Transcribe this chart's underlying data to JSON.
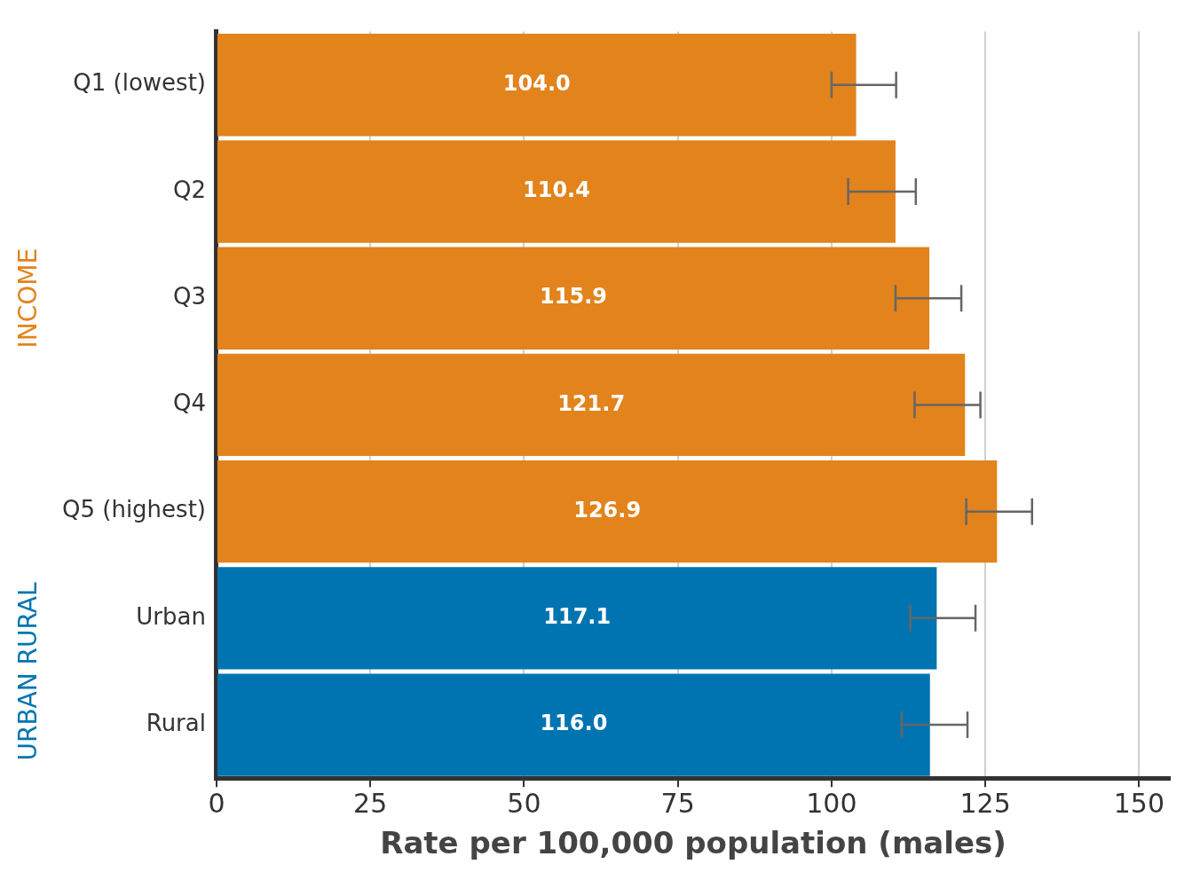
{
  "chart_data": {
    "type": "bar",
    "orientation": "horizontal",
    "xlabel": "Rate per 100,000 population (males)",
    "categories": [
      "Q1 (lowest)",
      "Q2",
      "Q3",
      "Q4",
      "Q5 (highest)",
      "Urban",
      "Rural"
    ],
    "values": [
      104.0,
      110.4,
      115.9,
      121.7,
      126.9,
      117.1,
      116.0
    ],
    "colors": [
      "#e2831c",
      "#e2831c",
      "#e2831c",
      "#e2831c",
      "#e2831c",
      "#0074b0",
      "#0074b0"
    ],
    "errors": [
      [
        100,
        110.5
      ],
      [
        102.7,
        113.7
      ],
      [
        110.4,
        121.1
      ],
      [
        113.5,
        124.2
      ],
      [
        121.9,
        132.6
      ],
      [
        112.8,
        123.4
      ],
      [
        111.4,
        122.1
      ]
    ],
    "value_labels": [
      "104.0",
      "110.4",
      "115.9",
      "121.7",
      "126.9",
      "117.1",
      "116.0"
    ],
    "xlim": [
      0,
      155
    ],
    "xticks": [
      0,
      25,
      50,
      75,
      100,
      125,
      150
    ],
    "grid": "x",
    "legend": false,
    "annotations": [
      "INCOME",
      "URBAN RURAL"
    ]
  }
}
